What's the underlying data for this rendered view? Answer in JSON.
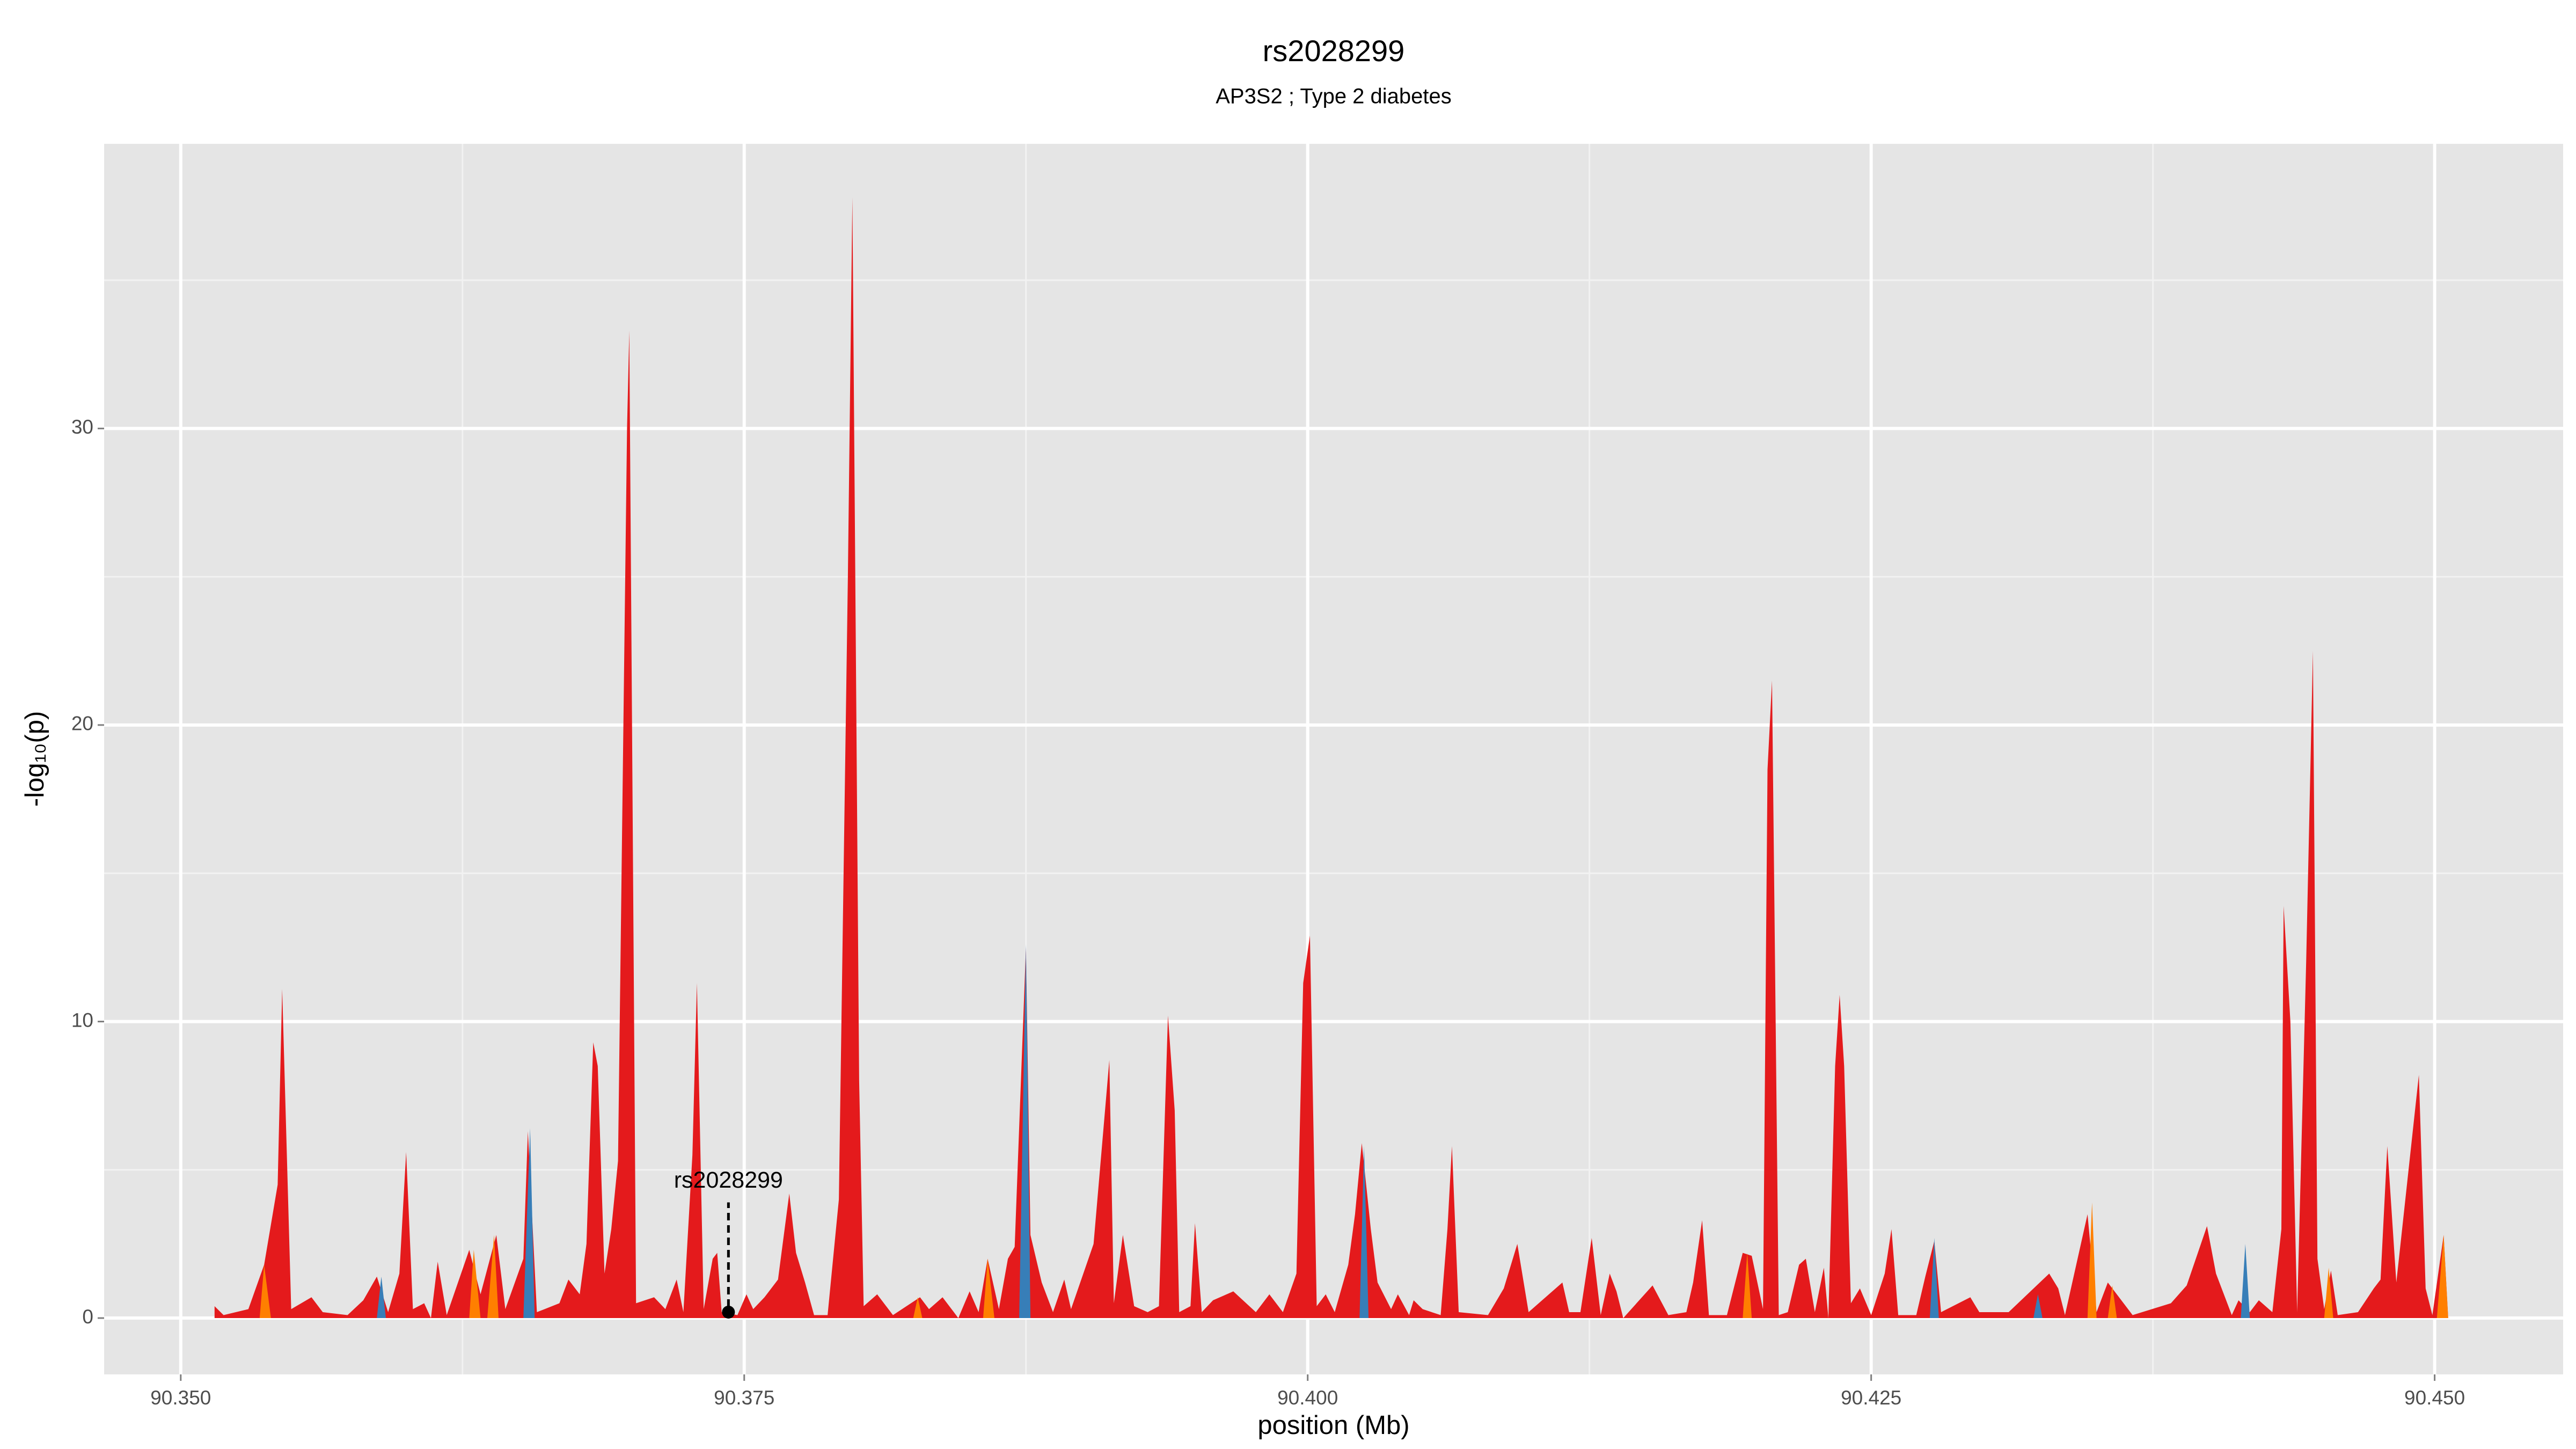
{
  "chart_data": {
    "type": "area",
    "title": "rs2028299",
    "subtitle": "AP3S2 ; Type 2 diabetes",
    "xlabel": "position (Mb)",
    "ylabel": "-log₁₀(p)",
    "xlim": [
      90.3466,
      90.4557
    ],
    "ylim": [
      -1.9,
      39.6
    ],
    "xticks": [
      {
        "value": 90.35,
        "label": "90.350"
      },
      90.375,
      {
        "value": 90.4,
        "label": "90.400"
      },
      90.425,
      {
        "value": 90.45,
        "label": "90.450"
      }
    ],
    "yticks": [
      0,
      10,
      20,
      30
    ],
    "grid": true,
    "annotation": {
      "text": "rs2028299",
      "x": 90.3743,
      "y": 0.2
    },
    "series": [
      {
        "color": "#e41a1c",
        "x": [
          90.3515,
          90.3519,
          90.353,
          90.3537,
          90.3543,
          90.3545,
          90.3549,
          90.3558,
          90.3563,
          90.3574,
          90.3581,
          90.3587,
          90.3592,
          90.3597,
          90.36,
          90.3603,
          90.3608,
          90.3611,
          90.3614,
          90.3618,
          90.3628,
          90.3633,
          90.364,
          90.3644,
          90.3652,
          90.3654,
          90.3658,
          90.3668,
          90.3672,
          90.3677,
          90.368,
          90.3683,
          90.3685,
          90.3688,
          90.3691,
          90.3694,
          90.3698,
          90.3699,
          90.3702,
          90.371,
          90.3715,
          90.372,
          90.3723,
          90.3727,
          90.3729,
          90.3732,
          90.3736,
          90.3738,
          90.374,
          90.3747,
          90.3751,
          90.3754,
          90.3759,
          90.3765,
          90.377,
          90.3773,
          90.3777,
          90.3781,
          90.3787,
          90.3792,
          90.3796,
          90.3798,
          90.3801,
          90.3803,
          90.3809,
          90.3816,
          90.3828,
          90.3832,
          90.3838,
          90.3845,
          90.385,
          90.3854,
          90.3858,
          90.3863,
          90.3867,
          90.387,
          90.3875,
          90.3877,
          90.3882,
          90.3887,
          90.3892,
          90.3895,
          90.3905,
          90.3912,
          90.3914,
          90.3918,
          90.3923,
          90.3929,
          90.3934,
          90.3938,
          90.3941,
          90.3943,
          90.3948,
          90.395,
          90.3953,
          90.3958,
          90.3967,
          90.3977,
          90.3983,
          90.3989,
          90.3995,
          90.3998,
          90.4001,
          90.4004,
          90.4008,
          90.4012,
          90.4018,
          90.4021,
          90.4024,
          90.4028,
          90.4031,
          90.4037,
          90.404,
          90.4045,
          90.4047,
          90.4051,
          90.4059,
          90.4062,
          90.4064,
          90.4067,
          90.408,
          90.4087,
          90.4093,
          90.4098,
          90.4113,
          90.4116,
          90.4121,
          90.4126,
          90.413,
          90.4134,
          90.4137,
          90.414,
          90.4153,
          90.416,
          90.4168,
          90.4171,
          90.4175,
          90.4178,
          90.4186,
          90.4193,
          90.4197,
          90.4202,
          90.4204,
          90.4206,
          90.4209,
          90.4213,
          90.4218,
          90.4221,
          90.4225,
          90.4229,
          90.4231,
          90.4234,
          90.4236,
          90.4238,
          90.4241,
          90.4245,
          90.425,
          90.4256,
          90.4259,
          90.4262,
          90.427,
          90.4274,
          90.4278,
          90.4281,
          90.4294,
          90.4298,
          90.4311,
          90.4329,
          90.4333,
          90.4336,
          90.4346,
          90.435,
          90.4355,
          90.4366,
          90.4383,
          90.439,
          90.4399,
          90.4403,
          90.441,
          90.4413,
          90.4418,
          90.4422,
          90.4428,
          90.4432,
          90.4433,
          90.4436,
          90.4439,
          90.4443,
          90.4446,
          90.4448,
          90.4451,
          90.4454,
          90.4457,
          90.4466,
          90.4473,
          90.4476,
          90.4479,
          90.4483,
          90.4487,
          90.4493,
          90.4496,
          90.4499,
          90.4504,
          90.4506
        ],
        "values": [
          0.4,
          0.1,
          0.3,
          1.8,
          4.5,
          11.1,
          0.3,
          0.7,
          0.2,
          0.1,
          0.6,
          1.4,
          0.2,
          1.5,
          5.6,
          0.3,
          0.5,
          0,
          1.9,
          0.1,
          2.3,
          0.8,
          2.8,
          0.3,
          2.0,
          6.3,
          0.2,
          0.5,
          1.3,
          0.8,
          2.5,
          9.3,
          8.5,
          1.5,
          3.0,
          5.3,
          30,
          33.3,
          0.5,
          0.7,
          0.3,
          1.3,
          0.2,
          5.5,
          11.3,
          0.3,
          2.0,
          2.2,
          0.2,
          0.1,
          0.8,
          0.3,
          0.7,
          1.3,
          4.2,
          2.2,
          1.2,
          0.1,
          0.1,
          4.0,
          25,
          37.8,
          8.0,
          0.4,
          0.8,
          0.1,
          0.7,
          0.3,
          0.7,
          0,
          0.9,
          0.2,
          2.0,
          0.3,
          2.0,
          2.4,
          12.5,
          2.8,
          1.2,
          0.2,
          1.3,
          0.3,
          2.5,
          8.7,
          0.5,
          2.8,
          0.4,
          0.2,
          0.4,
          10.2,
          7.0,
          0.2,
          0.4,
          3.2,
          0.2,
          0.6,
          0.9,
          0.2,
          0.8,
          0.2,
          1.5,
          11.3,
          12.9,
          0.4,
          0.8,
          0.2,
          1.8,
          3.5,
          5.9,
          3.0,
          1.2,
          0.3,
          0.8,
          0.1,
          0.6,
          0.3,
          0.1,
          3.0,
          5.8,
          0.2,
          0.1,
          1.0,
          2.5,
          0.2,
          1.2,
          0.2,
          0.2,
          2.7,
          0.1,
          1.5,
          0.9,
          0,
          1.1,
          0.1,
          0.2,
          1.2,
          3.3,
          0.1,
          0.1,
          2.2,
          2.1,
          0.3,
          18.5,
          21.5,
          0.1,
          0.2,
          1.8,
          2.0,
          0.2,
          1.7,
          0,
          8.5,
          10.9,
          8.5,
          0.5,
          1.0,
          0.1,
          1.5,
          3.0,
          0.1,
          0.1,
          1.4,
          2.6,
          0.2,
          0.7,
          0.2,
          0.2,
          1.5,
          1.0,
          0.1,
          3.5,
          0.2,
          1.2,
          0.1,
          0.5,
          1.1,
          3.1,
          1.5,
          0.1,
          0.6,
          0.2,
          0.6,
          0.2,
          3.0,
          13.9,
          10.0,
          0.2,
          12.0,
          22.5,
          2.0,
          0.3,
          1.6,
          0.1,
          0.2,
          1.0,
          1.3,
          5.8,
          1.2,
          4.0,
          8.2,
          1.0,
          0.1,
          2.8,
          0
        ]
      },
      {
        "color": "#377eb8",
        "x": [
          90.3587,
          90.3589,
          90.3591,
          90.3652,
          90.3655,
          90.3657,
          90.3872,
          90.3875,
          90.3877,
          90.4023,
          90.4025,
          90.4027,
          90.4276,
          90.4278,
          90.428,
          90.4322,
          90.4324,
          90.4326,
          90.4414,
          90.4416,
          90.4418
        ],
        "values": [
          0,
          1.4,
          0,
          0,
          6.4,
          0,
          0,
          12.6,
          0,
          0,
          5.8,
          0,
          0,
          2.7,
          0,
          0,
          0.8,
          0,
          0,
          2.5,
          0
        ]
      },
      {
        "color": "#ff7f00",
        "x": [
          90.3535,
          90.3537,
          90.354,
          90.3628,
          90.363,
          90.3633,
          90.3636,
          90.3639,
          90.3641,
          90.3825,
          90.3827,
          90.3829,
          90.3856,
          90.3858,
          90.3861,
          90.4193,
          90.4195,
          90.4197,
          90.4346,
          90.4348,
          90.435,
          90.4355,
          90.4357,
          90.4359,
          90.4451,
          90.4453,
          90.4455,
          90.4501,
          90.4504,
          90.4506
        ],
        "values": [
          0,
          1.8,
          0,
          0,
          2.3,
          0,
          0,
          2.8,
          0,
          0,
          0.7,
          0,
          0,
          2.0,
          0,
          0,
          2.2,
          0,
          0,
          3.9,
          0,
          0,
          1.1,
          0,
          0,
          1.7,
          0,
          0,
          2.8,
          0
        ]
      }
    ]
  }
}
